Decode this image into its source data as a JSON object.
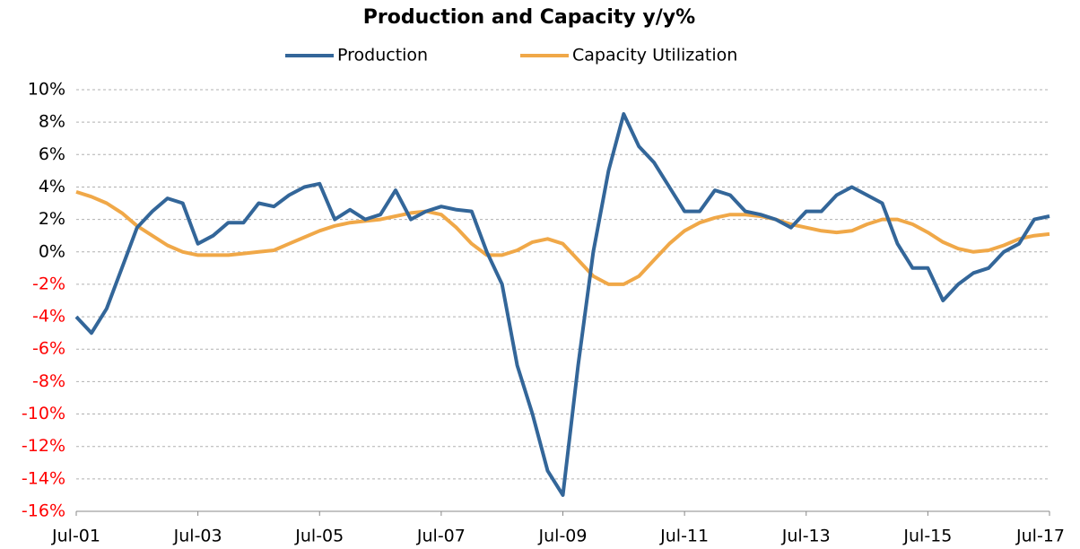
{
  "chart_data": {
    "type": "line",
    "title": "Production and Capacity y/y%",
    "categories": [
      "Jul-01",
      null,
      null,
      null,
      null,
      null,
      null,
      null,
      "Jul-03",
      null,
      null,
      null,
      null,
      null,
      null,
      null,
      "Jul-05",
      null,
      null,
      null,
      null,
      null,
      null,
      null,
      "Jul-07",
      null,
      null,
      null,
      null,
      null,
      null,
      null,
      "Jul-09",
      null,
      null,
      null,
      null,
      null,
      null,
      null,
      "Jul-11",
      null,
      null,
      null,
      null,
      null,
      null,
      null,
      "Jul-13",
      null,
      null,
      null,
      null,
      null,
      null,
      null,
      "Jul-15",
      null,
      null,
      null,
      null,
      null,
      null,
      null,
      "Jul-17"
    ],
    "series": [
      {
        "name": "Production",
        "color": "#336699",
        "values": [
          -4,
          -5,
          -3.5,
          -1,
          1.5,
          2.5,
          3.3,
          3,
          0.5,
          1,
          1.8,
          1.8,
          3,
          2.8,
          3.5,
          4,
          4.2,
          2,
          2.6,
          2,
          2.3,
          3.8,
          2,
          2.5,
          2.8,
          2.6,
          2.5,
          0,
          -2,
          -7,
          -10,
          -13.5,
          -15,
          -7,
          0,
          5,
          8.5,
          6.5,
          5.5,
          4,
          2.5,
          2.5,
          3.8,
          3.5,
          2.5,
          2.3,
          2,
          1.5,
          2.5,
          2.5,
          3.5,
          4,
          3.5,
          3,
          0.5,
          -1,
          -1,
          -3,
          -2,
          -1.3,
          -1,
          0,
          0.5,
          2,
          2.2
        ]
      },
      {
        "name": "Capacity Utilization",
        "color": "#f0a848",
        "values": [
          3.7,
          3.4,
          3,
          2.4,
          1.6,
          1,
          0.4,
          0,
          -0.2,
          -0.2,
          -0.2,
          -0.1,
          0,
          0.1,
          0.5,
          0.9,
          1.3,
          1.6,
          1.8,
          1.9,
          2,
          2.2,
          2.4,
          2.5,
          2.3,
          1.5,
          0.5,
          -0.2,
          -0.2,
          0.1,
          0.6,
          0.8,
          0.5,
          -0.5,
          -1.5,
          -2,
          -2,
          -1.5,
          -0.5,
          0.5,
          1.3,
          1.8,
          2.1,
          2.3,
          2.3,
          2.2,
          2,
          1.7,
          1.5,
          1.3,
          1.2,
          1.3,
          1.7,
          2,
          2,
          1.7,
          1.2,
          0.6,
          0.2,
          0,
          0.1,
          0.4,
          0.8,
          1,
          1.1
        ]
      }
    ],
    "ylim": [
      -16,
      10
    ],
    "yticks": [
      {
        "value": -16,
        "label": "-16%"
      },
      {
        "value": -14,
        "label": "-14%"
      },
      {
        "value": -12,
        "label": "-12%"
      },
      {
        "value": -10,
        "label": "-10%"
      },
      {
        "value": -8,
        "label": "-8%"
      },
      {
        "value": -6,
        "label": "-6%"
      },
      {
        "value": -4,
        "label": "-4%"
      },
      {
        "value": -2,
        "label": "-2%"
      },
      {
        "value": 0,
        "label": "0%"
      },
      {
        "value": 2,
        "label": "2%"
      },
      {
        "value": 4,
        "label": "4%"
      },
      {
        "value": 6,
        "label": "6%"
      },
      {
        "value": 8,
        "label": "8%"
      },
      {
        "value": 10,
        "label": "10%"
      }
    ],
    "grid": true,
    "negative_tick_color": "#ff0000",
    "legend": "top"
  }
}
